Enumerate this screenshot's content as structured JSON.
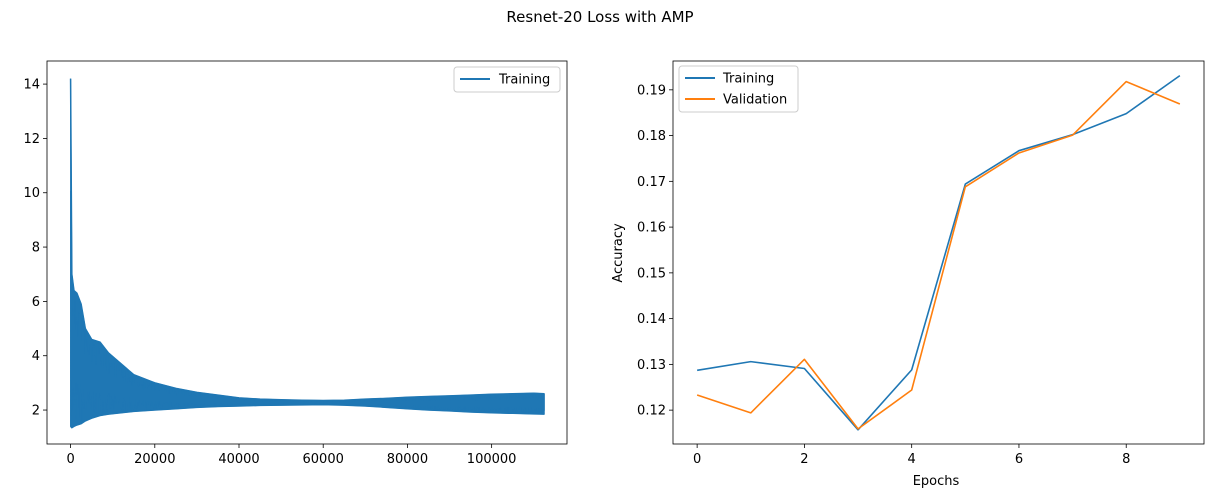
{
  "figure": {
    "title": "Resnet-20 Loss with AMP"
  },
  "colors": {
    "training": "#1f77b4",
    "validation": "#ff7f0e",
    "frame": "#000000",
    "legend_border": "#cccccc"
  },
  "chart_data": [
    {
      "type": "line",
      "title": "",
      "xlabel": "",
      "ylabel": "",
      "xlim": [
        -5600,
        117900
      ],
      "ylim": [
        0.75,
        14.85
      ],
      "x_ticks": [
        0,
        20000,
        40000,
        60000,
        80000,
        100000
      ],
      "x_tick_labels": [
        "0",
        "20000",
        "40000",
        "60000",
        "80000",
        "100000"
      ],
      "y_ticks": [
        2,
        4,
        6,
        8,
        10,
        12,
        14
      ],
      "y_tick_labels": [
        "2",
        "4",
        "6",
        "8",
        "10",
        "12",
        "14"
      ],
      "legend": {
        "position": "top-right",
        "entries": [
          "Training"
        ]
      },
      "series": [
        {
          "name": "Training",
          "note": "noisy per-iteration loss; upper and lower envelope of the band",
          "x": [
            0,
            300,
            800,
            1500,
            2500,
            3500,
            5000,
            7000,
            9000,
            12000,
            15000,
            20000,
            25000,
            30000,
            35000,
            40000,
            45000,
            50000,
            55000,
            60000,
            65000,
            70000,
            75000,
            80000,
            85000,
            90000,
            95000,
            100000,
            105000,
            110000,
            112500
          ],
          "upper": [
            14.2,
            7.0,
            6.4,
            6.3,
            5.9,
            5.0,
            4.6,
            4.5,
            4.1,
            3.7,
            3.3,
            3.0,
            2.8,
            2.65,
            2.55,
            2.45,
            2.4,
            2.38,
            2.36,
            2.35,
            2.36,
            2.4,
            2.43,
            2.47,
            2.5,
            2.52,
            2.55,
            2.58,
            2.6,
            2.62,
            2.6
          ],
          "lower": [
            1.4,
            1.35,
            1.4,
            1.45,
            1.5,
            1.6,
            1.7,
            1.8,
            1.85,
            1.9,
            1.95,
            2.0,
            2.05,
            2.1,
            2.13,
            2.15,
            2.17,
            2.18,
            2.19,
            2.2,
            2.18,
            2.15,
            2.1,
            2.05,
            2.0,
            1.97,
            1.93,
            1.9,
            1.88,
            1.86,
            1.85
          ]
        }
      ]
    },
    {
      "type": "line",
      "title": "",
      "xlabel": "Epochs",
      "ylabel": "Accuracy",
      "xlim": [
        -0.45,
        9.45
      ],
      "ylim": [
        0.1126,
        0.1963
      ],
      "x_ticks": [
        0,
        2,
        4,
        6,
        8
      ],
      "x_tick_labels": [
        "0",
        "2",
        "4",
        "6",
        "8"
      ],
      "y_ticks": [
        0.12,
        0.13,
        0.14,
        0.15,
        0.16,
        0.17,
        0.18,
        0.19
      ],
      "y_tick_labels": [
        "0.12",
        "0.13",
        "0.14",
        "0.15",
        "0.16",
        "0.17",
        "0.18",
        "0.19"
      ],
      "legend": {
        "position": "top-left",
        "entries": [
          "Training",
          "Validation"
        ]
      },
      "series": [
        {
          "name": "Training",
          "x": [
            0,
            1,
            2,
            3,
            4,
            5,
            6,
            7,
            8,
            9
          ],
          "values": [
            0.1287,
            0.1306,
            0.1291,
            0.1157,
            0.1288,
            0.1694,
            0.1767,
            0.1802,
            0.1848,
            0.1931
          ]
        },
        {
          "name": "Validation",
          "x": [
            0,
            1,
            2,
            3,
            4,
            5,
            6,
            7,
            8,
            9
          ],
          "values": [
            0.1233,
            0.1194,
            0.1311,
            0.1159,
            0.1244,
            0.1688,
            0.1762,
            0.1801,
            0.1918,
            0.1869
          ]
        }
      ]
    }
  ]
}
